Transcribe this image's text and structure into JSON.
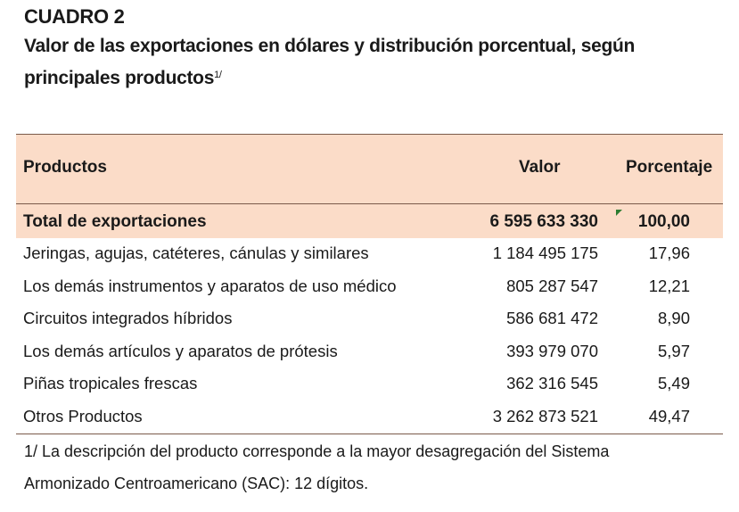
{
  "title": {
    "label": "CUADRO 2",
    "subtitle_main": "Valor de las exportaciones en dólares y distribución porcentual, según",
    "subtitle_cont": "principales productos",
    "subtitle_sup": "1/"
  },
  "table": {
    "headers": {
      "product": "Productos",
      "value": "Valor",
      "percent": "Porcentaje"
    },
    "total": {
      "name": "Total de exportaciones",
      "value": "6 595 633 330",
      "percent": "100,00"
    },
    "rows": [
      {
        "name": "Jeringas, agujas, catéteres, cánulas y similares",
        "value": "1 184 495 175",
        "percent": "17,96"
      },
      {
        "name": "Los demás instrumentos y aparatos de uso médico",
        "value": "805 287 547",
        "percent": "12,21"
      },
      {
        "name": "Circuitos integrados híbridos",
        "value": "586 681 472",
        "percent": "8,90"
      },
      {
        "name": "Los demás artículos y aparatos de prótesis",
        "value": "393 979 070",
        "percent": "5,97"
      },
      {
        "name": "Piñas tropicales frescas",
        "value": "362 316 545",
        "percent": "5,49"
      },
      {
        "name": "Otros Productos",
        "value": "3 262 873 521",
        "percent": "49,47"
      }
    ]
  },
  "footnote": {
    "line1": "1/ La descripción del producto corresponde a la mayor desagregación del Sistema",
    "line2": "Armonizado Centroamericano (SAC): 12 dígitos."
  },
  "colors": {
    "header_bg": "#fbdcc8",
    "rule": "#7a5a4a",
    "marker": "#2e7d32"
  }
}
